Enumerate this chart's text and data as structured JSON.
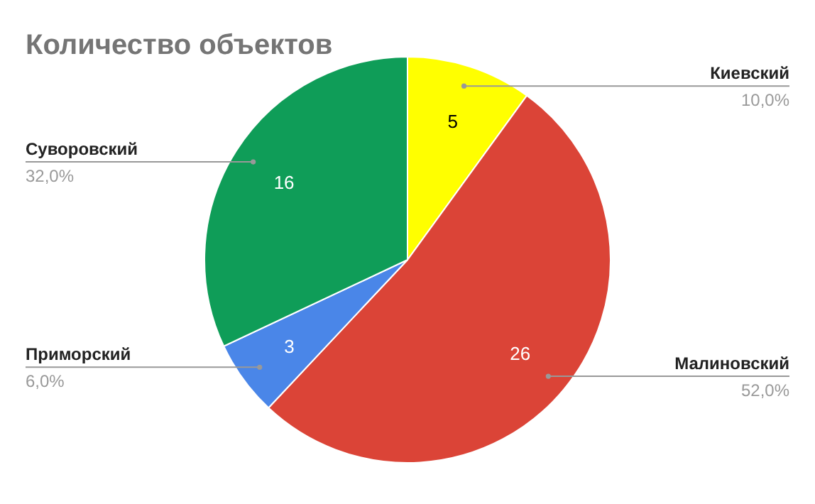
{
  "chart_data": {
    "type": "pie",
    "title": "Количество объектов",
    "categories": [
      "Киевский",
      "Малиновский",
      "Приморский",
      "Суворовский"
    ],
    "values": [
      10,
      52,
      6,
      32
    ],
    "colors": [
      "#ffff00",
      "#db4437",
      "#4a86e8",
      "#0f9d58"
    ],
    "value_labels": [
      "10,0%",
      "52,0%",
      "6,0%",
      "32,0%"
    ],
    "annotations": [
      {
        "text": "5",
        "x": "Киевский"
      },
      {
        "text": "26",
        "x": "Малиновский"
      },
      {
        "text": "3",
        "x": "Приморский"
      },
      {
        "text": "16",
        "x": "Суворовский"
      }
    ]
  }
}
